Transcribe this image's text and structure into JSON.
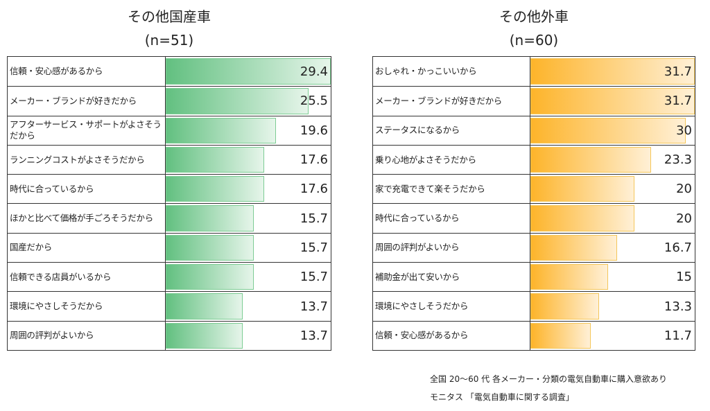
{
  "chart_data": [
    {
      "type": "bar",
      "orientation": "horizontal",
      "title": "その他国産車",
      "subtitle": "(n=51)",
      "color": "#62c080",
      "xlim": [
        0,
        29.4
      ],
      "categories": [
        "信頼・安心感があるから",
        "メーカー・ブランドが好きだから",
        "アフターサービス・サポートがよさそうだから",
        "ランニングコストがよさそうだから",
        "時代に合っているから",
        "ほかと比べて価格が手ごろそうだから",
        "国産だから",
        "信頼できる店員がいるから",
        "環境にやさしそうだから",
        "周囲の評判がよいから"
      ],
      "values": [
        29.4,
        25.5,
        19.6,
        17.6,
        17.6,
        15.7,
        15.7,
        15.7,
        13.7,
        13.7
      ],
      "labels": [
        "29.4",
        "25.5",
        "19.6",
        "17.6",
        "17.6",
        "15.7",
        "15.7",
        "15.7",
        "13.7",
        "13.7"
      ]
    },
    {
      "type": "bar",
      "orientation": "horizontal",
      "title": "その他外車",
      "subtitle": "(n=60)",
      "color": "#fdb42a",
      "xlim": [
        0,
        31.7
      ],
      "categories": [
        "おしゃれ・かっこいいから",
        "メーカー・ブランドが好きだから",
        "ステータスになるから",
        "乗り心地がよさそうだから",
        "家で充電できて楽そうだから",
        "時代に合っているから",
        "周囲の評判がよいから",
        "補助金が出て安いから",
        "環境にやさしそうだから",
        "信頼・安心感があるから"
      ],
      "values": [
        31.7,
        31.7,
        30,
        23.3,
        20,
        20,
        16.7,
        15,
        13.3,
        11.7
      ],
      "labels": [
        "31.7",
        "31.7",
        "30",
        "23.3",
        "20",
        "20",
        "16.7",
        "15",
        "13.3",
        "11.7"
      ]
    }
  ],
  "notes": {
    "line1": "全国 20～60 代  各メーカー・分類の電気自動車に購入意欲あり",
    "line2": "モニタス 「電気自動車に関する調査」"
  }
}
